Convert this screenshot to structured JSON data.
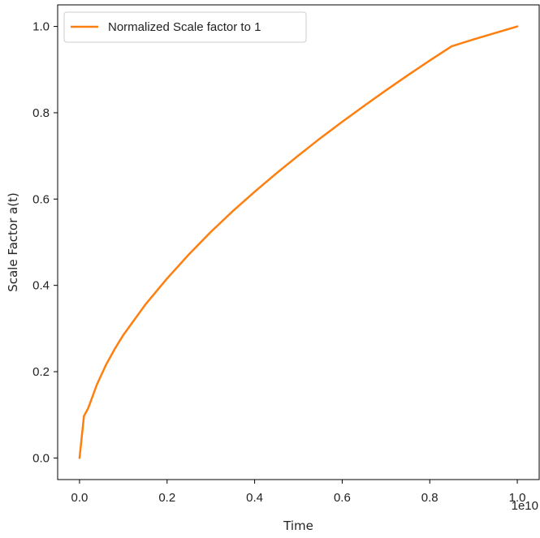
{
  "chart_data": {
    "type": "line",
    "title": "",
    "xlabel": "Time",
    "ylabel": "Scale Factor a(t)",
    "x_offset_label": "1e10",
    "xlim": [
      -0.05,
      1.05
    ],
    "ylim": [
      -0.05,
      1.05
    ],
    "x_ticks": [
      0.0,
      0.2,
      0.4,
      0.6,
      0.8,
      1.0
    ],
    "x_tick_labels": [
      "0.0",
      "0.2",
      "0.4",
      "0.6",
      "0.8",
      "1.0"
    ],
    "y_ticks": [
      0.0,
      0.2,
      0.4,
      0.6,
      0.8,
      1.0
    ],
    "y_tick_labels": [
      "0.0",
      "0.2",
      "0.4",
      "0.6",
      "0.8",
      "1.0"
    ],
    "grid": false,
    "legend_position": "top-left",
    "series": [
      {
        "name": "Normalized Scale factor to 1",
        "color": "#ff7f0e",
        "x": [
          0.0,
          0.01,
          0.02,
          0.04,
          0.06,
          0.08,
          0.1,
          0.15,
          0.2,
          0.25,
          0.3,
          0.35,
          0.4,
          0.45,
          0.5,
          0.55,
          0.6,
          0.65,
          0.7,
          0.75,
          0.8,
          0.85,
          0.9,
          0.95,
          1.0
        ],
        "y": [
          0.0,
          0.097,
          0.116,
          0.171,
          0.215,
          0.252,
          0.285,
          0.355,
          0.416,
          0.472,
          0.524,
          0.572,
          0.617,
          0.66,
          0.701,
          0.741,
          0.779,
          0.816,
          0.852,
          0.887,
          0.921,
          0.954,
          0.97,
          0.985,
          1.0
        ]
      }
    ]
  }
}
